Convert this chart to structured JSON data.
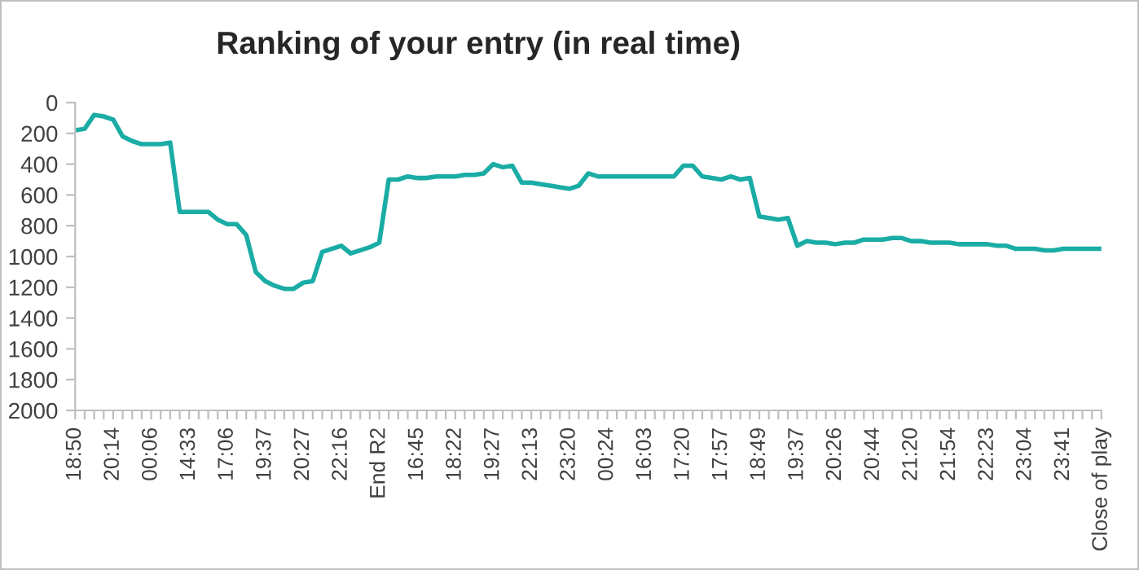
{
  "chart_data": {
    "type": "line",
    "title": "Ranking of your entry (in real time)",
    "categories": [
      "18:50",
      null,
      null,
      null,
      "20:14",
      null,
      null,
      null,
      "00:06",
      null,
      null,
      null,
      "14:33",
      null,
      null,
      null,
      "17:06",
      null,
      null,
      null,
      "19:37",
      null,
      null,
      null,
      "20:27",
      null,
      null,
      null,
      "22:16",
      null,
      null,
      null,
      "End R2",
      null,
      null,
      null,
      "16:45",
      null,
      null,
      null,
      "18:22",
      null,
      null,
      null,
      "19:27",
      null,
      null,
      null,
      "22:13",
      null,
      null,
      null,
      "23:20",
      null,
      null,
      null,
      "00:24",
      null,
      null,
      null,
      "16:03",
      null,
      null,
      null,
      "17:20",
      null,
      null,
      null,
      "17:57",
      null,
      null,
      null,
      "18:49",
      null,
      null,
      null,
      "19:37",
      null,
      null,
      null,
      "20:26",
      null,
      null,
      null,
      "20:44",
      null,
      null,
      null,
      "21:20",
      null,
      null,
      null,
      "21:54",
      null,
      null,
      null,
      "22:23",
      null,
      null,
      null,
      "23:04",
      null,
      null,
      null,
      "23:41",
      null,
      null,
      null,
      "Close of play"
    ],
    "series": [
      {
        "color": "#1aaca5",
        "values": [
          180,
          170,
          80,
          90,
          110,
          220,
          250,
          270,
          270,
          270,
          260,
          710,
          710,
          710,
          710,
          760,
          790,
          790,
          860,
          1100,
          1160,
          1190,
          1210,
          1210,
          1170,
          1160,
          970,
          950,
          930,
          980,
          960,
          940,
          910,
          500,
          500,
          480,
          490,
          490,
          480,
          480,
          480,
          470,
          470,
          460,
          400,
          420,
          410,
          520,
          520,
          530,
          540,
          550,
          560,
          540,
          460,
          480,
          480,
          480,
          480,
          480,
          480,
          480,
          480,
          480,
          410,
          410,
          480,
          490,
          500,
          480,
          500,
          490,
          740,
          750,
          760,
          750,
          930,
          900,
          910,
          910,
          920,
          910,
          910,
          890,
          890,
          890,
          880,
          880,
          900,
          900,
          910,
          910,
          910,
          920,
          920,
          920,
          920,
          930,
          930,
          950,
          950,
          950,
          960,
          960,
          950,
          950,
          950,
          950,
          950
        ]
      }
    ],
    "ylim": [
      2000,
      0
    ],
    "yticks": [
      0,
      200,
      400,
      600,
      800,
      1000,
      1200,
      1400,
      1600,
      1800,
      2000
    ],
    "grid": false,
    "legend": false,
    "marker": "none",
    "line_style": "solid"
  }
}
